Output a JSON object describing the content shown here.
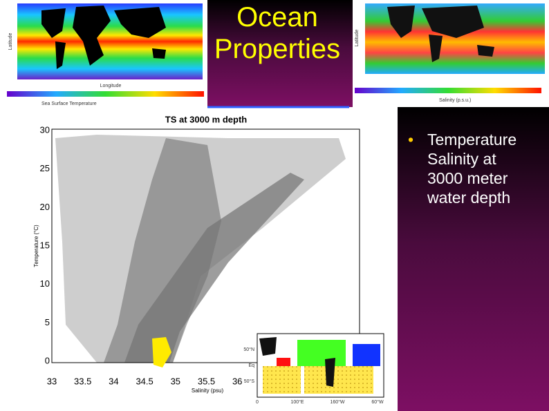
{
  "title": "Ocean Properties",
  "bullets": [
    "Temperature Salinity at 3000 meter water depth"
  ],
  "sst_map": {
    "y_label": "Latitude",
    "x_label": "Longitude",
    "colorbar_label": "Sea Surface Temperature"
  },
  "salinity_map": {
    "y_label": "Latitude",
    "colorbar_label": "Salinity (p.s.u.)"
  },
  "ts_plot": {
    "title": "TS at 3000 m depth",
    "x_label": "Salinity (psu)",
    "y_label": "Temperature (°C)",
    "yticks": [
      30,
      25,
      20,
      15,
      10,
      5,
      0
    ],
    "xticks": [
      33,
      33.5,
      34,
      34.5,
      35,
      35.5,
      36
    ]
  },
  "inset_map": {
    "lat_labels": [
      "50°N",
      "Eq",
      "50°S"
    ],
    "lon_labels": [
      "0",
      "100°E",
      "160°W",
      "60°W"
    ]
  }
}
